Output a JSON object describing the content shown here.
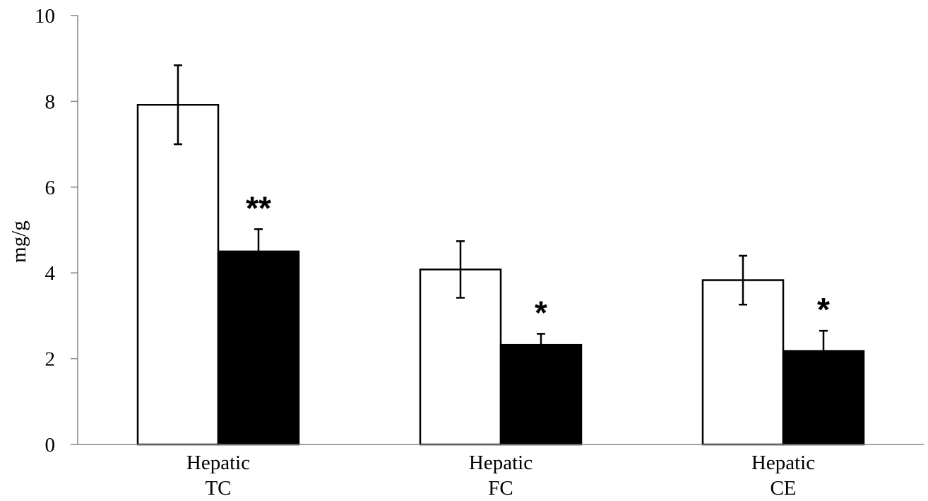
{
  "chart_data": {
    "type": "bar",
    "title": "",
    "xlabel": "",
    "ylabel": "mg/g",
    "ylim": [
      0,
      10
    ],
    "yticks": [
      0,
      2,
      4,
      6,
      8,
      10
    ],
    "grid": false,
    "legend": "none",
    "categories": [
      [
        "Hepatic",
        "TC"
      ],
      [
        "Hepatic",
        "FC"
      ],
      [
        "Hepatic",
        "CE"
      ]
    ],
    "series": [
      {
        "fill": "#ffffff",
        "values": [
          7.92,
          4.08,
          3.83
        ],
        "errors": [
          0.92,
          0.66,
          0.57
        ]
      },
      {
        "fill": "#000000",
        "values": [
          4.5,
          2.32,
          2.18
        ],
        "errors": [
          0.52,
          0.26,
          0.47
        ]
      }
    ],
    "annotations": [
      {
        "category": 0,
        "series": 1,
        "text": "**"
      },
      {
        "category": 1,
        "series": 1,
        "text": "*"
      },
      {
        "category": 2,
        "series": 1,
        "text": "*"
      }
    ]
  }
}
